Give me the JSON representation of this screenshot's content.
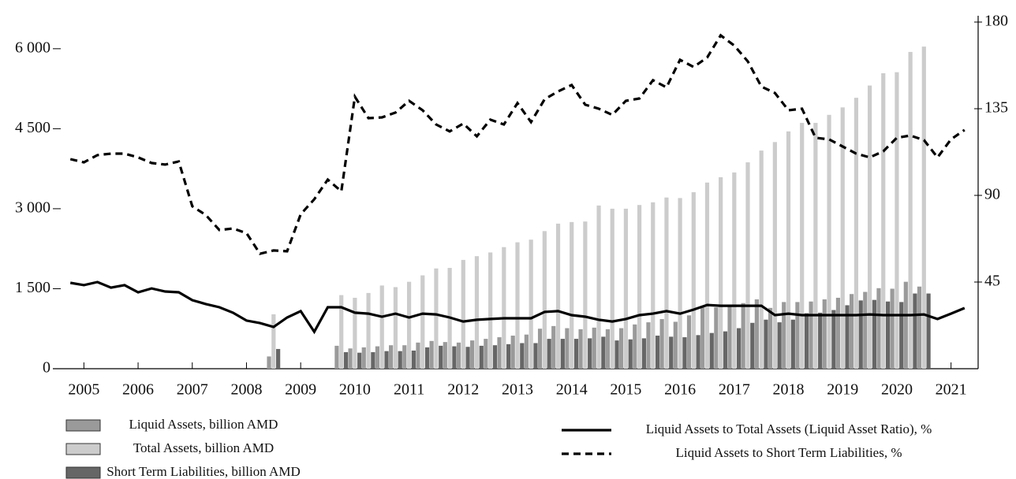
{
  "chart_data": {
    "type": "bar",
    "x": [
      2004.75,
      2005,
      2005.25,
      2005.5,
      2005.75,
      2006,
      2006.25,
      2006.5,
      2006.75,
      2007,
      2007.25,
      2007.5,
      2007.75,
      2008,
      2008.25,
      2008.5,
      2008.75,
      2009,
      2009.25,
      2009.5,
      2009.75,
      2010,
      2010.25,
      2010.5,
      2010.75,
      2011,
      2011.25,
      2011.5,
      2011.75,
      2012,
      2012.25,
      2012.5,
      2012.75,
      2013,
      2013.25,
      2013.5,
      2013.75,
      2014,
      2014.25,
      2014.5,
      2014.75,
      2015,
      2015.25,
      2015.5,
      2015.75,
      2016,
      2016.25,
      2016.5,
      2016.75,
      2017,
      2017.25,
      2017.5,
      2017.75,
      2018,
      2018.25,
      2018.5,
      2018.75,
      2019,
      2019.25,
      2019.5,
      2019.75,
      2020,
      2020.25,
      2020.5,
      2020.75,
      2021,
      2021.25
    ],
    "series": [
      {
        "name": "Liquid Assets, billion AMD",
        "type": "bar",
        "color": "#9a9a9a",
        "values": [
          null,
          null,
          null,
          null,
          null,
          null,
          null,
          null,
          null,
          null,
          null,
          null,
          null,
          null,
          null,
          230,
          null,
          null,
          null,
          null,
          430,
          380,
          400,
          420,
          440,
          440,
          490,
          520,
          500,
          490,
          530,
          560,
          590,
          620,
          640,
          750,
          800,
          760,
          740,
          770,
          740,
          760,
          830,
          870,
          930,
          880,
          1000,
          1150,
          1150,
          1160,
          1230,
          1300,
          1140,
          1250,
          1250,
          1260,
          1300,
          1330,
          1400,
          1440,
          1510,
          1500,
          1630,
          1540,
          null,
          null,
          null
        ]
      },
      {
        "name": "Total Assets, billion AMD",
        "type": "bar",
        "color": "#cccccc",
        "values": [
          null,
          null,
          null,
          null,
          null,
          null,
          null,
          null,
          null,
          null,
          null,
          null,
          null,
          null,
          null,
          1020,
          null,
          null,
          null,
          null,
          1380,
          1330,
          1420,
          1560,
          1530,
          1630,
          1750,
          1880,
          1890,
          2040,
          2110,
          2180,
          2280,
          2370,
          2420,
          2580,
          2720,
          2750,
          2760,
          3060,
          3000,
          3000,
          3070,
          3120,
          3210,
          3200,
          3310,
          3490,
          3590,
          3680,
          3870,
          4090,
          4250,
          4450,
          4610,
          4610,
          4760,
          4900,
          5080,
          5310,
          5540,
          5560,
          5940,
          6040,
          null,
          null,
          null
        ]
      },
      {
        "name": "Short Term Liabilities, billion AMD",
        "type": "bar",
        "color": "#666666",
        "values": [
          null,
          null,
          null,
          null,
          null,
          null,
          null,
          null,
          null,
          null,
          null,
          null,
          null,
          null,
          null,
          370,
          null,
          null,
          null,
          null,
          310,
          300,
          310,
          330,
          330,
          340,
          400,
          430,
          420,
          410,
          430,
          440,
          460,
          480,
          480,
          560,
          560,
          560,
          570,
          600,
          530,
          550,
          570,
          620,
          600,
          590,
          630,
          670,
          700,
          760,
          860,
          920,
          870,
          920,
          1040,
          1050,
          1100,
          1190,
          1280,
          1290,
          1260,
          1250,
          1410,
          1410,
          null,
          null,
          null
        ]
      },
      {
        "name": "Liquid Assets to Total Assets (Liquid Asset Ratio), %",
        "type": "line",
        "axis": "y2",
        "color": "#000000",
        "linestyle": "solid",
        "values": [
          44.6,
          43.4,
          45.0,
          42.1,
          43.4,
          39.7,
          41.7,
          40.1,
          39.7,
          35.6,
          33.6,
          31.9,
          29.1,
          25.0,
          23.7,
          21.7,
          26.6,
          29.9,
          19.2,
          31.9,
          31.9,
          29.1,
          28.6,
          27.0,
          28.6,
          26.6,
          28.6,
          28.2,
          26.6,
          24.5,
          25.4,
          25.8,
          26.2,
          26.2,
          26.2,
          29.5,
          29.9,
          27.8,
          27.0,
          25.4,
          24.5,
          25.8,
          27.8,
          28.6,
          29.9,
          28.6,
          30.7,
          33.1,
          32.7,
          32.7,
          32.7,
          32.7,
          27.8,
          28.6,
          27.8,
          27.8,
          27.8,
          27.8,
          27.8,
          28.2,
          27.8,
          27.8,
          27.8,
          28.2,
          25.8,
          28.6,
          31.5
        ]
      },
      {
        "name": "Liquid Assets to Short Term Liabilities, %",
        "type": "line",
        "axis": "y2",
        "color": "#000000",
        "linestyle": "dashed",
        "values": [
          108.8,
          107.2,
          110.9,
          111.7,
          111.7,
          109.7,
          106.8,
          106.0,
          107.6,
          84.3,
          79.8,
          72.0,
          72.8,
          70.4,
          59.7,
          61.4,
          61.0,
          80.2,
          88.0,
          98.2,
          92.1,
          141.2,
          130.1,
          130.5,
          133.0,
          139.1,
          134.2,
          126.8,
          123.2,
          127.3,
          120.7,
          129.3,
          126.8,
          137.9,
          128.1,
          139.9,
          144.0,
          147.3,
          137.1,
          135.0,
          131.8,
          139.1,
          140.3,
          149.8,
          146.1,
          160.4,
          156.7,
          161.6,
          173.1,
          167.8,
          159.6,
          146.5,
          143.2,
          134.2,
          135.0,
          119.9,
          119.1,
          115.4,
          111.7,
          109.7,
          112.9,
          119.9,
          121.1,
          118.7,
          109.7,
          119.1,
          124.0
        ]
      }
    ],
    "xlim": [
      2004.5,
      2021.5
    ],
    "xticks": [
      2005,
      2006,
      2007,
      2008,
      2009,
      2010,
      2011,
      2012,
      2013,
      2014,
      2015,
      2016,
      2017,
      2018,
      2019,
      2020,
      2021
    ],
    "ylim": [
      0,
      6500
    ],
    "yticks": [
      0,
      {
        "value": 1500,
        "label": "1 500"
      },
      {
        "value": 3000,
        "label": "3 000"
      },
      {
        "value": 4500,
        "label": "4 500"
      },
      {
        "value": 6000,
        "label": "6 000"
      }
    ],
    "y2lim": [
      0,
      180
    ],
    "y2ticks": [
      45,
      90,
      135,
      180
    ],
    "grid": false
  }
}
